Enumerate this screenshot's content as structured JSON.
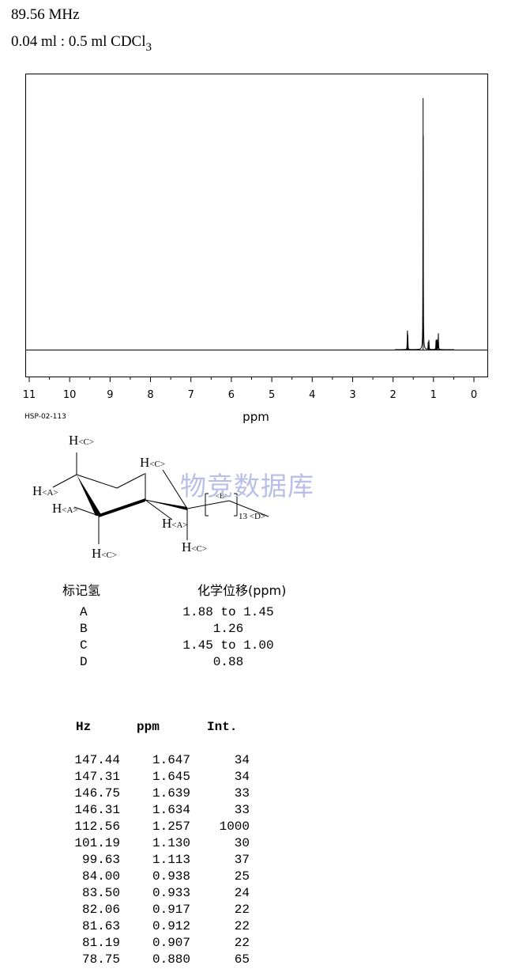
{
  "header": {
    "frequency": "89.56 MHz",
    "sample_text": "0.04 ml : 0.5 ml CDCl",
    "sample_sub": "3"
  },
  "chart_data": {
    "type": "line",
    "title": "",
    "xlabel": "ppm",
    "ylabel": "",
    "xlim": [
      11,
      0
    ],
    "x_reversed": true,
    "x_ticks": [
      11,
      10,
      9,
      8,
      7,
      6,
      5,
      4,
      3,
      2,
      1,
      0
    ],
    "minor_tick_step": 0.5,
    "grid": false,
    "peaks": [
      {
        "ppm": 1.647,
        "intensity": 34
      },
      {
        "ppm": 1.645,
        "intensity": 34
      },
      {
        "ppm": 1.639,
        "intensity": 33
      },
      {
        "ppm": 1.634,
        "intensity": 33
      },
      {
        "ppm": 1.257,
        "intensity": 1000
      },
      {
        "ppm": 1.13,
        "intensity": 30
      },
      {
        "ppm": 1.113,
        "intensity": 37
      },
      {
        "ppm": 0.938,
        "intensity": 25
      },
      {
        "ppm": 0.933,
        "intensity": 24
      },
      {
        "ppm": 0.917,
        "intensity": 22
      },
      {
        "ppm": 0.912,
        "intensity": 22
      },
      {
        "ppm": 0.907,
        "intensity": 22
      },
      {
        "ppm": 0.88,
        "intensity": 65
      }
    ],
    "spectrum_code": "HSP-02-113"
  },
  "structure": {
    "labels": {
      "hc_top": "H<C>",
      "hc_right": "H<C>",
      "ha_left": "H<A>",
      "ha_left2": "H<A>",
      "ha_mid": "H<A>",
      "hc_bottom": "H<C>",
      "hc_bottom2": "H<C>",
      "b_label": "<B>",
      "d_label": "13 <D>"
    }
  },
  "watermark": "物竞数据库",
  "shift_table": {
    "header_label": "标记氢",
    "header_shift": "化学位移(ppm)",
    "rows": [
      {
        "label": "A",
        "shift": "1.88 to 1.45"
      },
      {
        "label": "B",
        "shift": "1.26"
      },
      {
        "label": "C",
        "shift": "1.45 to 1.00"
      },
      {
        "label": "D",
        "shift": "0.88"
      }
    ]
  },
  "peak_table": {
    "headers": [
      "Hz",
      "ppm",
      "Int."
    ],
    "rows": [
      [
        "147.44",
        "1.647",
        "34"
      ],
      [
        "147.31",
        "1.645",
        "34"
      ],
      [
        "146.75",
        "1.639",
        "33"
      ],
      [
        "146.31",
        "1.634",
        "33"
      ],
      [
        "112.56",
        "1.257",
        "1000"
      ],
      [
        "101.19",
        "1.130",
        "30"
      ],
      [
        "99.63",
        "1.113",
        "37"
      ],
      [
        "84.00",
        "0.938",
        "25"
      ],
      [
        "83.50",
        "0.933",
        "24"
      ],
      [
        "82.06",
        "0.917",
        "22"
      ],
      [
        "81.63",
        "0.912",
        "22"
      ],
      [
        "81.19",
        "0.907",
        "22"
      ],
      [
        "78.75",
        "0.880",
        "65"
      ]
    ]
  }
}
